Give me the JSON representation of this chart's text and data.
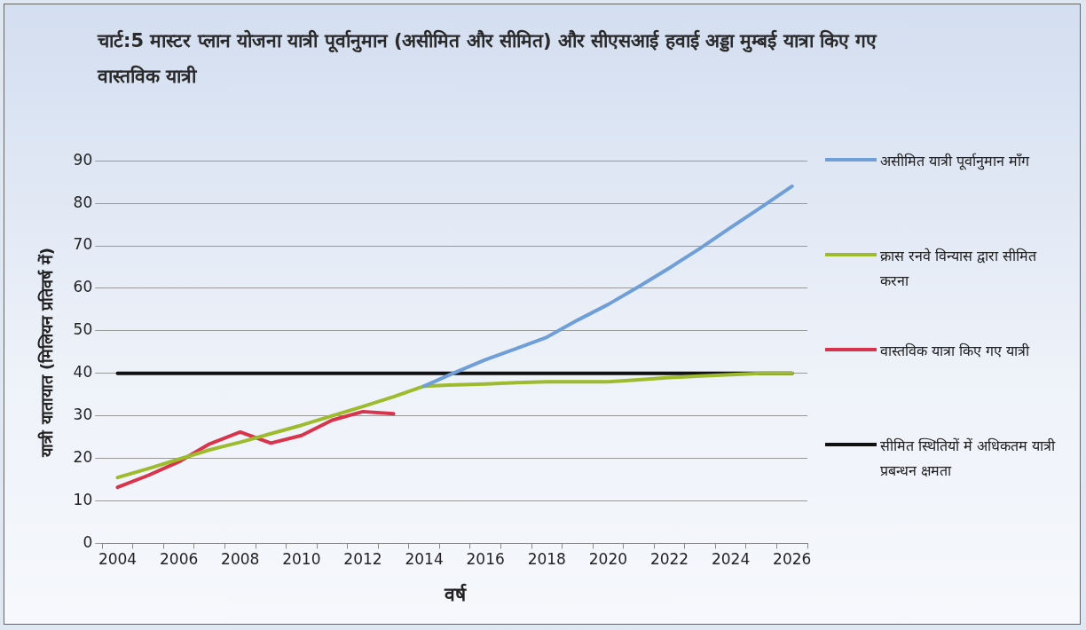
{
  "chart_data": {
    "type": "line",
    "title": "चार्ट:5 मास्टर प्लान योजना यात्री पूर्वानुमान (असीमित और सीमित) और सीएसआई हवाई अड्डा मुम्बई यात्रा किए गए वास्तविक यात्री",
    "xlabel": "वर्ष",
    "ylabel": "यात्री यातायात (मिलियन प्रतिवर्ष में)",
    "categories": [
      "2004",
      null,
      "2006",
      null,
      "2008",
      null,
      "2010",
      null,
      "2012",
      null,
      "2014",
      null,
      "2016",
      null,
      "2018",
      null,
      "2020",
      null,
      "2022",
      null,
      "2024",
      null,
      "2026"
    ],
    "series": [
      {
        "name": "असीमित यात्री पूर्वानुमान माँग",
        "color": "#6f9fd6",
        "values": [
          null,
          null,
          null,
          null,
          null,
          null,
          null,
          null,
          null,
          null,
          37,
          40.2,
          43.2,
          45.8,
          48.5,
          52.5,
          56.2,
          60.4,
          64.8,
          69.4,
          74.3,
          79.1,
          84
        ]
      },
      {
        "name": "क्रास रनवे विन्यास द्वारा सीमित करना",
        "color": "#9dbb2c",
        "values": [
          15.5,
          17.6,
          19.8,
          22,
          23.8,
          25.8,
          27.8,
          30,
          32.2,
          34.5,
          37,
          37.3,
          37.5,
          37.8,
          38,
          38,
          38,
          38.5,
          39,
          39.4,
          39.7,
          40,
          40
        ]
      },
      {
        "name": "वास्तविक यात्रा किए गए यात्री",
        "color": "#d8344c",
        "values": [
          13.2,
          16,
          19.2,
          23.4,
          26.2,
          23.6,
          25.4,
          29,
          31,
          30.5,
          null,
          null,
          null,
          null,
          null,
          null,
          null,
          null,
          null,
          null,
          null,
          null,
          null
        ]
      },
      {
        "name": "सीमित स्थितियों में अधिकतम यात्री प्रबन्धन क्षमता",
        "color": "#111111",
        "values": [
          40,
          40,
          40,
          40,
          40,
          40,
          40,
          40,
          40,
          40,
          40,
          40,
          40,
          40,
          40,
          40,
          40,
          40,
          40,
          40,
          40,
          40,
          40
        ]
      }
    ],
    "ylim": [
      0,
      90
    ],
    "yticks": [
      0,
      10,
      20,
      30,
      40,
      50,
      60,
      70,
      80,
      90
    ],
    "grid": "y",
    "legend": "right",
    "marker": "none",
    "line_style": "solid"
  }
}
